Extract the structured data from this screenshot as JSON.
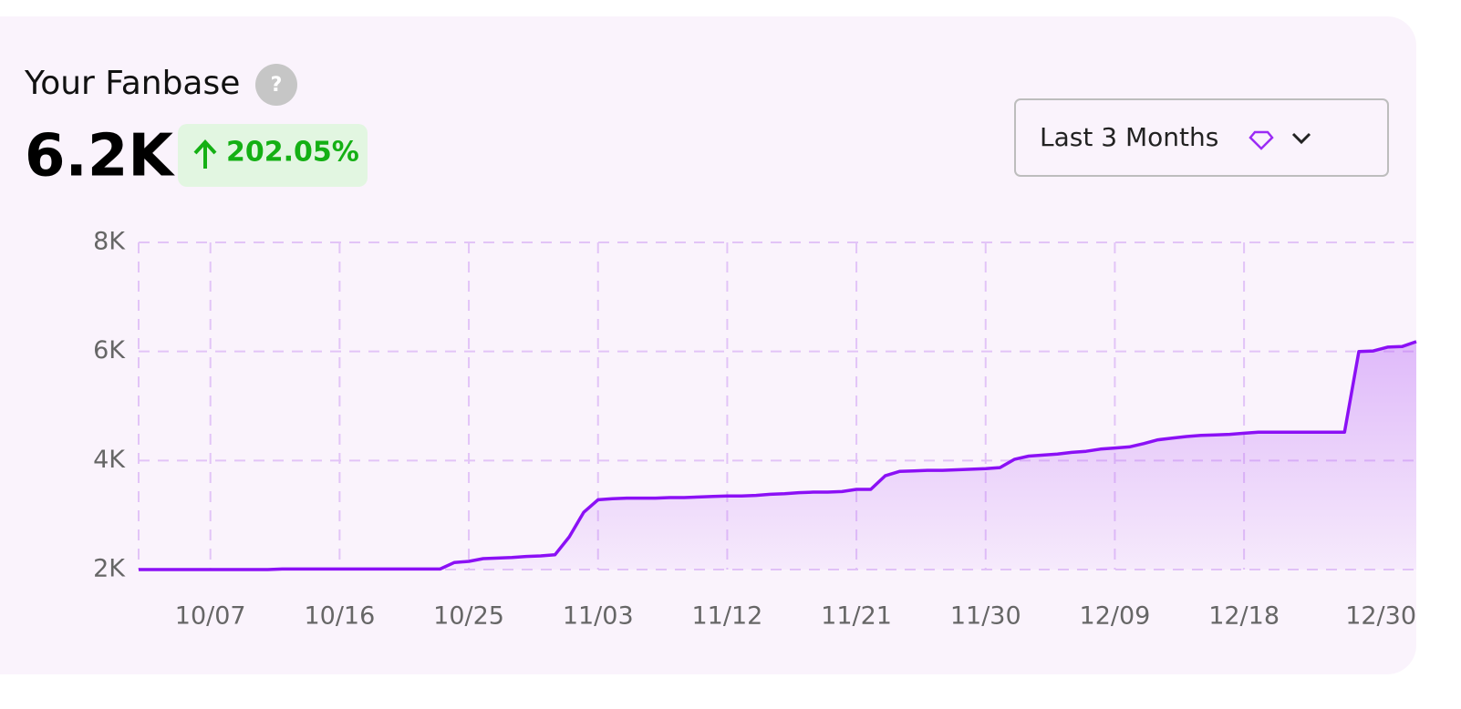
{
  "header": {
    "title": "Your Fanbase",
    "help": "?",
    "value": "6.2K",
    "change": "202.05%"
  },
  "filter": {
    "label": "Last 3 Months"
  },
  "chart_data": {
    "type": "line",
    "color": "#8b10f5",
    "grid": true,
    "categories": [
      null,
      null,
      null,
      null,
      null,
      "10/07",
      null,
      null,
      null,
      null,
      null,
      null,
      null,
      null,
      "10/16",
      null,
      null,
      null,
      null,
      null,
      null,
      null,
      null,
      "10/25",
      null,
      null,
      null,
      null,
      null,
      null,
      null,
      null,
      "11/03",
      null,
      null,
      null,
      null,
      null,
      null,
      null,
      null,
      "11/12",
      null,
      null,
      null,
      null,
      null,
      null,
      null,
      null,
      "11/21",
      null,
      null,
      null,
      null,
      null,
      null,
      null,
      null,
      "11/30",
      null,
      null,
      null,
      null,
      null,
      null,
      null,
      null,
      "12/09",
      null,
      null,
      null,
      null,
      null,
      null,
      null,
      null,
      "12/18",
      null,
      null,
      null,
      null,
      null,
      null,
      null,
      null,
      null,
      null,
      null,
      "12/30"
    ],
    "values": [
      2000,
      2000,
      2000,
      2000,
      2000,
      2000,
      2000,
      2000,
      2000,
      2000,
      2010,
      2010,
      2010,
      2010,
      2010,
      2010,
      2010,
      2010,
      2010,
      2010,
      2010,
      2010,
      2130,
      2150,
      2200,
      2210,
      2220,
      2240,
      2250,
      2270,
      2600,
      3050,
      3280,
      3300,
      3310,
      3310,
      3310,
      3320,
      3320,
      3330,
      3340,
      3350,
      3350,
      3360,
      3380,
      3390,
      3410,
      3420,
      3420,
      3430,
      3470,
      3470,
      3720,
      3800,
      3810,
      3820,
      3820,
      3830,
      3840,
      3850,
      3870,
      4020,
      4080,
      4100,
      4120,
      4150,
      4170,
      4210,
      4230,
      4250,
      4310,
      4380,
      4410,
      4440,
      4460,
      4470,
      4480,
      4500,
      4520,
      4520,
      4520,
      4520,
      4520,
      4520,
      4520,
      6000,
      6010,
      6080,
      6090,
      6180
    ],
    "ylim": [
      2000,
      8000
    ],
    "yticks": [
      {
        "value": 2000,
        "label": "2K"
      },
      {
        "value": 4000,
        "label": "4K"
      },
      {
        "value": 6000,
        "label": "6K"
      },
      {
        "value": 8000,
        "label": "8K"
      }
    ]
  }
}
